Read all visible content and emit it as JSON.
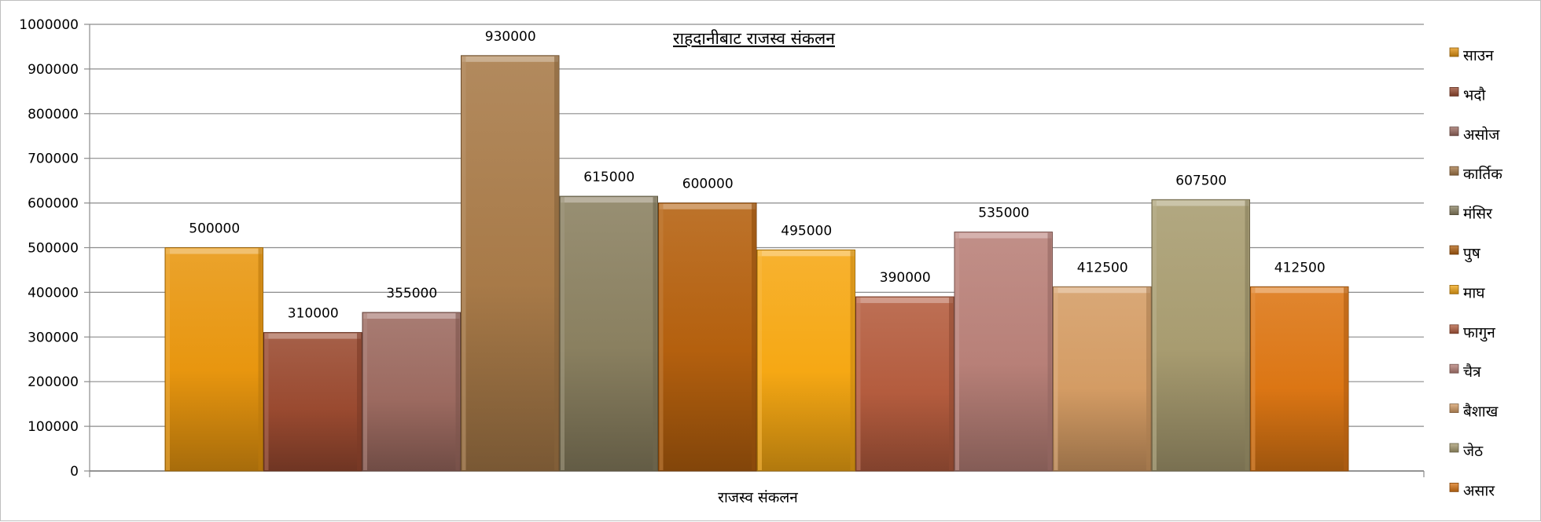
{
  "chart_data": {
    "type": "bar",
    "title": "राहदानीबाट राजस्व संकलन",
    "xlabel": "राजस्व संकलन",
    "ylabel": "",
    "ylim": [
      0,
      1000000
    ],
    "yticks": [
      "0",
      "100000",
      "200000",
      "300000",
      "400000",
      "500000",
      "600000",
      "700000",
      "800000",
      "900000",
      "1000000"
    ],
    "grid": true,
    "legend_position": "right",
    "series": [
      {
        "name": "साउन",
        "value": 500000,
        "label": "500000",
        "color": "#e8960f"
      },
      {
        "name": "भदौ",
        "value": 310000,
        "label": "310000",
        "color": "#9a4a30"
      },
      {
        "name": "असोज",
        "value": 355000,
        "label": "355000",
        "color": "#9c6a60"
      },
      {
        "name": "कार्तिक",
        "value": 930000,
        "label": "930000",
        "color": "#a87a48"
      },
      {
        "name": "मंसिर",
        "value": 615000,
        "label": "615000",
        "color": "#8a8060"
      },
      {
        "name": "पुष",
        "value": 600000,
        "label": "600000",
        "color": "#b4600e"
      },
      {
        "name": "माघ",
        "value": 495000,
        "label": "495000",
        "color": "#f6a814"
      },
      {
        "name": "फागुन",
        "value": 390000,
        "label": "390000",
        "color": "#b45c3e"
      },
      {
        "name": "चैत्र",
        "value": 535000,
        "label": "535000",
        "color": "#b88078"
      },
      {
        "name": "बैशाख",
        "value": 412500,
        "label": "412500",
        "color": "#d49c64"
      },
      {
        "name": "जेठ",
        "value": 607500,
        "label": "607500",
        "color": "#a89c70"
      },
      {
        "name": "असार",
        "value": 412500,
        "label": "412500",
        "color": "#dc7614"
      }
    ]
  }
}
